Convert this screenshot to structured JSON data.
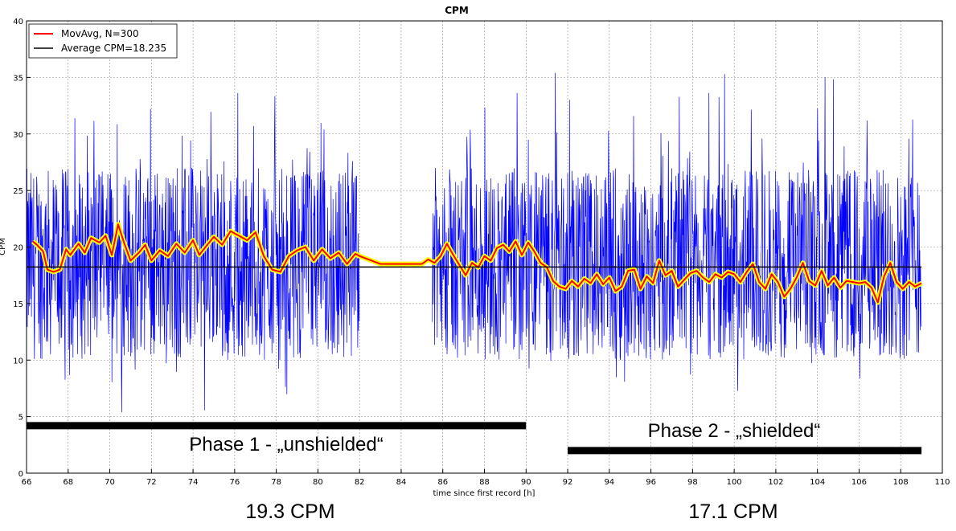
{
  "chart_data": {
    "type": "line",
    "title": "CPM",
    "xlabel": "time since first record [h]",
    "ylabel": "CPM",
    "xlim": [
      66,
      110
    ],
    "ylim": [
      0,
      40
    ],
    "xticks": [
      66,
      68,
      70,
      72,
      74,
      76,
      78,
      80,
      82,
      84,
      86,
      88,
      90,
      92,
      94,
      96,
      98,
      100,
      102,
      104,
      106,
      108,
      110
    ],
    "yticks": [
      0,
      5,
      10,
      15,
      20,
      25,
      30,
      35,
      40
    ],
    "grid": true,
    "legend_position": "top-left",
    "legend": [
      "MovAvg, N=300",
      "Average CPM=18.235"
    ],
    "series": [
      {
        "name": "MovAvg, N=300",
        "color": "#ff0000",
        "highlight_color": "#ffff00",
        "x": [
          66.3,
          66.5,
          66.8,
          67.0,
          67.3,
          67.6,
          67.9,
          68.1,
          68.5,
          68.8,
          69.1,
          69.5,
          69.8,
          70.1,
          70.4,
          70.7,
          71.0,
          71.4,
          71.7,
          72.0,
          72.4,
          72.8,
          73.2,
          73.6,
          74.0,
          74.3,
          74.6,
          75.0,
          75.4,
          75.8,
          76.2,
          76.6,
          77.0,
          77.4,
          77.8,
          78.2,
          78.6,
          79.0,
          79.4,
          79.8,
          80.2,
          80.6,
          81.0,
          81.4,
          81.8,
          82.0,
          83.0,
          84.0,
          85.0,
          85.3,
          85.6,
          85.9,
          86.2,
          86.5,
          86.8,
          87.1,
          87.4,
          87.7,
          88.0,
          88.3,
          88.6,
          88.9,
          89.2,
          89.5,
          89.8,
          90.1,
          90.4,
          90.7,
          91.0,
          91.3,
          91.6,
          91.9,
          92.2,
          92.5,
          92.8,
          93.1,
          93.4,
          93.7,
          94.0,
          94.3,
          94.6,
          94.9,
          95.2,
          95.5,
          95.8,
          96.1,
          96.4,
          96.7,
          97.0,
          97.3,
          97.6,
          97.9,
          98.2,
          98.5,
          98.8,
          99.1,
          99.4,
          99.7,
          100.0,
          100.3,
          100.6,
          100.9,
          101.2,
          101.5,
          101.8,
          102.1,
          102.4,
          102.7,
          103.0,
          103.3,
          103.6,
          103.9,
          104.2,
          104.5,
          104.8,
          105.1,
          105.4,
          105.7,
          106.0,
          106.3,
          106.6,
          106.9,
          107.2,
          107.5,
          107.8,
          108.1,
          108.4,
          108.7,
          109.0
        ],
        "y": [
          20.5,
          20.2,
          19.6,
          18.0,
          17.8,
          18.0,
          19.8,
          19.3,
          20.3,
          19.5,
          20.8,
          20.4,
          21.0,
          19.3,
          22.0,
          20.3,
          18.8,
          19.5,
          20.2,
          18.8,
          19.7,
          19.2,
          20.3,
          19.5,
          20.6,
          19.3,
          20.0,
          20.9,
          20.2,
          21.4,
          21.0,
          20.6,
          21.3,
          19.2,
          18.0,
          17.8,
          19.2,
          19.7,
          20.0,
          18.8,
          19.8,
          19.0,
          19.5,
          18.5,
          19.4,
          19.2,
          18.5,
          18.5,
          18.5,
          18.9,
          18.6,
          19.2,
          20.3,
          19.3,
          18.4,
          17.5,
          18.6,
          18.2,
          19.2,
          18.8,
          19.9,
          20.2,
          19.6,
          20.5,
          19.3,
          20.4,
          19.6,
          18.6,
          18.2,
          17.0,
          16.5,
          16.3,
          17.0,
          16.5,
          17.2,
          16.8,
          17.6,
          16.7,
          17.3,
          16.1,
          16.5,
          17.9,
          18.0,
          16.3,
          17.4,
          16.8,
          18.8,
          17.5,
          17.9,
          16.5,
          17.1,
          17.7,
          17.9,
          17.3,
          16.9,
          17.6,
          17.3,
          17.8,
          17.6,
          16.9,
          17.8,
          18.5,
          16.9,
          16.3,
          17.6,
          16.9,
          15.6,
          16.3,
          17.3,
          18.6,
          17.0,
          16.6,
          17.9,
          16.6,
          17.3,
          16.4,
          17.0,
          16.9,
          16.8,
          16.9,
          16.4,
          15.1,
          17.4,
          18.6,
          16.9,
          16.3,
          16.9,
          16.5,
          16.8
        ]
      },
      {
        "name": "Average CPM=18.235",
        "color": "#000000",
        "x": [
          66.0,
          109.0
        ],
        "y": [
          18.235,
          18.235
        ]
      },
      {
        "color": "#0000ff",
        "x_ranges": [
          [
            66.0,
            82.0
          ],
          [
            85.5,
            109.0
          ]
        ],
        "typical_low": 10,
        "typical_high": 27,
        "peak": 37
      }
    ],
    "annotations": [
      {
        "text": "Phase 1 - „unshielded“",
        "bar_x": [
          66.0,
          90.0
        ],
        "bar_y": 4.2
      },
      {
        "text": "Phase 2 - „shielded“",
        "bar_x": [
          92.0,
          109.0
        ],
        "bar_y": 2.0
      }
    ],
    "phase_cpm": [
      "19.3 CPM",
      "17.1 CPM"
    ]
  }
}
